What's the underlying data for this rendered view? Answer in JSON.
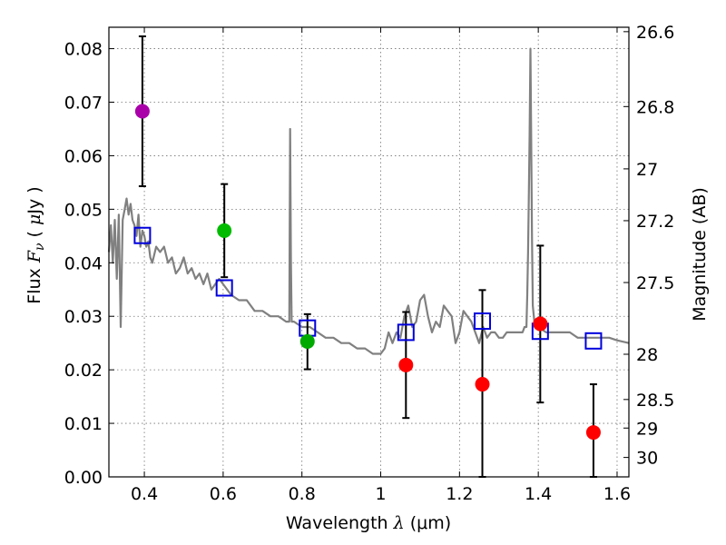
{
  "chart_data": {
    "type": "scatter",
    "xlabel": "Wavelength  λ (μm)",
    "ylabel": "Flux  Fν  ( μJy )",
    "ylabel_parts": {
      "prefix": "Flux",
      "symbol": "F",
      "sub": "ν",
      "paren_open": "(",
      "unit_mu": "μ",
      "unit": "Jy",
      "paren_close": ")"
    },
    "xlabel_parts": {
      "prefix": "Wavelength",
      "symbol": "λ",
      "unit": "(μm)"
    },
    "right_ylabel": "Magnitude (AB)",
    "xlim": [
      0.31,
      1.63
    ],
    "ylim": [
      0.0,
      0.084
    ],
    "x_ticks": [
      {
        "value": 0.4,
        "label": "0.4"
      },
      {
        "value": 0.6,
        "label": "0.6"
      },
      {
        "value": 0.8,
        "label": "0.8"
      },
      {
        "value": 1.0,
        "label": "1"
      },
      {
        "value": 1.2,
        "label": "1.2"
      },
      {
        "value": 1.4,
        "label": "1.4"
      },
      {
        "value": 1.6,
        "label": "1.6"
      }
    ],
    "y_ticks": [
      {
        "value": 0.0,
        "label": "0.00"
      },
      {
        "value": 0.01,
        "label": "0.01"
      },
      {
        "value": 0.02,
        "label": "0.02"
      },
      {
        "value": 0.03,
        "label": "0.03"
      },
      {
        "value": 0.04,
        "label": "0.04"
      },
      {
        "value": 0.05,
        "label": "0.05"
      },
      {
        "value": 0.06,
        "label": "0.06"
      },
      {
        "value": 0.07,
        "label": "0.07"
      },
      {
        "value": 0.08,
        "label": "0.08"
      }
    ],
    "mag_ticks": [
      {
        "mag": 26.6,
        "label": "26.6"
      },
      {
        "mag": 26.8,
        "label": "26.8"
      },
      {
        "mag": 27.0,
        "label": "27"
      },
      {
        "mag": 27.2,
        "label": "27.2"
      },
      {
        "mag": 27.5,
        "label": "27.5"
      },
      {
        "mag": 28.0,
        "label": "28"
      },
      {
        "mag": 28.5,
        "label": "28.5"
      },
      {
        "mag": 29.0,
        "label": "29"
      },
      {
        "mag": 30.0,
        "label": "30"
      }
    ],
    "observed": [
      {
        "x": 0.395,
        "y": 0.0683,
        "err_low": 0.0543,
        "err_high": 0.0823,
        "color": "#aa00aa"
      },
      {
        "x": 0.603,
        "y": 0.046,
        "err_low": 0.0373,
        "err_high": 0.0547,
        "color": "#00bb00"
      },
      {
        "x": 0.814,
        "y": 0.0253,
        "err_low": 0.0201,
        "err_high": 0.0304,
        "color": "#00aa00"
      },
      {
        "x": 1.064,
        "y": 0.0209,
        "err_low": 0.011,
        "err_high": 0.0308,
        "color": "#ff0000"
      },
      {
        "x": 1.258,
        "y": 0.0173,
        "err_low": 0.0,
        "err_high": 0.0349,
        "color": "#ff0000"
      },
      {
        "x": 1.405,
        "y": 0.0286,
        "err_low": 0.0139,
        "err_high": 0.0432,
        "color": "#ff0000"
      },
      {
        "x": 1.54,
        "y": 0.0083,
        "err_low": 0.0,
        "err_high": 0.0173,
        "color": "#ff0000"
      }
    ],
    "model_bandpass": [
      {
        "x": 0.395,
        "y": 0.0451
      },
      {
        "x": 0.603,
        "y": 0.0353
      },
      {
        "x": 0.814,
        "y": 0.0278
      },
      {
        "x": 1.064,
        "y": 0.027
      },
      {
        "x": 1.258,
        "y": 0.0291
      },
      {
        "x": 1.405,
        "y": 0.0272
      },
      {
        "x": 1.54,
        "y": 0.0254
      }
    ],
    "model_spectrum": {
      "color": "#808080",
      "x": [
        0.31,
        0.315,
        0.32,
        0.325,
        0.33,
        0.335,
        0.34,
        0.345,
        0.35,
        0.355,
        0.36,
        0.365,
        0.37,
        0.375,
        0.38,
        0.385,
        0.39,
        0.395,
        0.4,
        0.405,
        0.41,
        0.415,
        0.42,
        0.43,
        0.44,
        0.45,
        0.46,
        0.47,
        0.48,
        0.49,
        0.5,
        0.51,
        0.52,
        0.53,
        0.54,
        0.55,
        0.56,
        0.57,
        0.58,
        0.59,
        0.6,
        0.62,
        0.64,
        0.66,
        0.68,
        0.7,
        0.72,
        0.74,
        0.76,
        0.768,
        0.77,
        0.772,
        0.774,
        0.78,
        0.8,
        0.82,
        0.84,
        0.86,
        0.88,
        0.9,
        0.92,
        0.94,
        0.96,
        0.98,
        1.0,
        1.01,
        1.02,
        1.03,
        1.04,
        1.05,
        1.06,
        1.07,
        1.08,
        1.09,
        1.1,
        1.11,
        1.12,
        1.13,
        1.14,
        1.15,
        1.16,
        1.17,
        1.18,
        1.19,
        1.2,
        1.21,
        1.22,
        1.23,
        1.24,
        1.25,
        1.26,
        1.27,
        1.28,
        1.29,
        1.3,
        1.31,
        1.32,
        1.33,
        1.34,
        1.35,
        1.36,
        1.365,
        1.37,
        1.372,
        1.374,
        1.376,
        1.378,
        1.38,
        1.382,
        1.384,
        1.386,
        1.39,
        1.4,
        1.42,
        1.44,
        1.46,
        1.48,
        1.5,
        1.52,
        1.54,
        1.56,
        1.58,
        1.6,
        1.63
      ],
      "y": [
        0.042,
        0.047,
        0.04,
        0.048,
        0.037,
        0.049,
        0.028,
        0.048,
        0.05,
        0.052,
        0.049,
        0.051,
        0.048,
        0.047,
        0.045,
        0.049,
        0.043,
        0.046,
        0.045,
        0.043,
        0.044,
        0.041,
        0.04,
        0.043,
        0.042,
        0.043,
        0.04,
        0.041,
        0.038,
        0.039,
        0.041,
        0.038,
        0.039,
        0.037,
        0.038,
        0.036,
        0.038,
        0.035,
        0.036,
        0.037,
        0.036,
        0.034,
        0.033,
        0.033,
        0.031,
        0.031,
        0.03,
        0.03,
        0.029,
        0.029,
        0.065,
        0.04,
        0.029,
        0.029,
        0.028,
        0.028,
        0.027,
        0.026,
        0.026,
        0.025,
        0.025,
        0.024,
        0.024,
        0.023,
        0.023,
        0.024,
        0.027,
        0.025,
        0.027,
        0.026,
        0.03,
        0.032,
        0.028,
        0.029,
        0.033,
        0.034,
        0.03,
        0.027,
        0.029,
        0.028,
        0.032,
        0.031,
        0.03,
        0.025,
        0.027,
        0.031,
        0.03,
        0.029,
        0.027,
        0.025,
        0.028,
        0.026,
        0.027,
        0.027,
        0.026,
        0.026,
        0.027,
        0.027,
        0.027,
        0.027,
        0.027,
        0.028,
        0.028,
        0.034,
        0.042,
        0.052,
        0.064,
        0.08,
        0.064,
        0.045,
        0.032,
        0.029,
        0.028,
        0.027,
        0.027,
        0.027,
        0.027,
        0.026,
        0.026,
        0.026,
        0.026,
        0.026,
        0.0255,
        0.025
      ]
    }
  }
}
